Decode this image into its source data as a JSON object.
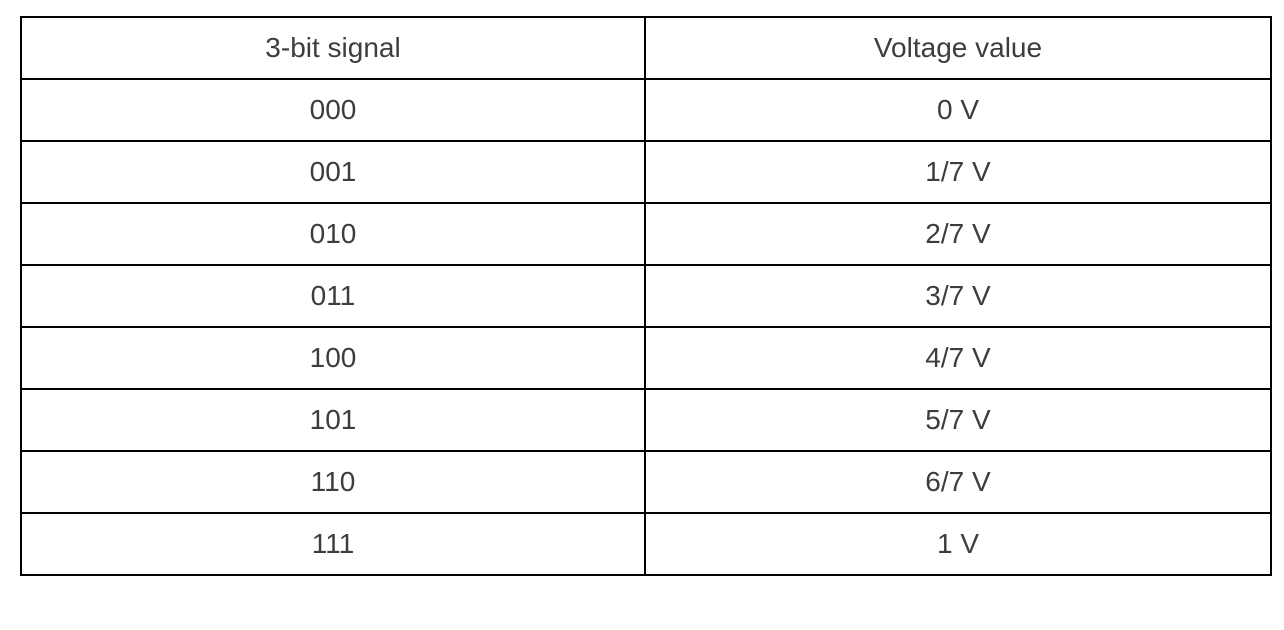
{
  "table": {
    "headers": [
      "3-bit signal",
      "Voltage value"
    ],
    "rows": [
      [
        "000",
        "0 V"
      ],
      [
        "001",
        "1/7 V"
      ],
      [
        "010",
        "2/7 V"
      ],
      [
        "011",
        "3/7 V"
      ],
      [
        "100",
        "4/7 V"
      ],
      [
        "101",
        "5/7 V"
      ],
      [
        "110",
        "6/7 V"
      ],
      [
        "111",
        "1 V"
      ]
    ]
  }
}
